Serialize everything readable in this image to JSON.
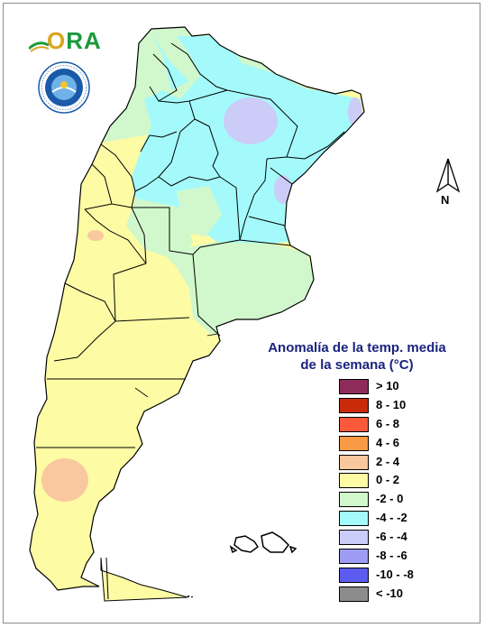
{
  "logo": {
    "text_o": "O",
    "text_ra": "RA"
  },
  "seal": {
    "text": "SERVICIO METEOROLÓGICO NACIONAL ARGENTINA",
    "abbr": "SMN"
  },
  "north_arrow": {
    "label": "N"
  },
  "legend": {
    "title_line1": "Anomalía de la temp. media",
    "title_line2": "de la semana (°C)",
    "items": [
      {
        "label": "> 10",
        "color": "#8e2b5a"
      },
      {
        "label": "8 - 10",
        "color": "#c92a0a"
      },
      {
        "label": "6 - 8",
        "color": "#fa5a3a"
      },
      {
        "label": "4 - 6",
        "color": "#f99a44"
      },
      {
        "label": "2 - 4",
        "color": "#f9c89e"
      },
      {
        "label": "0 - 2",
        "color": "#fdfba4"
      },
      {
        "label": "-2 - 0",
        "color": "#d1f8cc"
      },
      {
        "label": "-4 - -2",
        "color": "#a4fafa"
      },
      {
        "label": "-6 - -4",
        "color": "#cbcdf8"
      },
      {
        "label": "-8 - -6",
        "color": "#9c9cf4"
      },
      {
        "label": "-10 - -8",
        "color": "#5c5cf0"
      },
      {
        "label": "< -10",
        "color": "#8c8c8c"
      }
    ]
  }
}
